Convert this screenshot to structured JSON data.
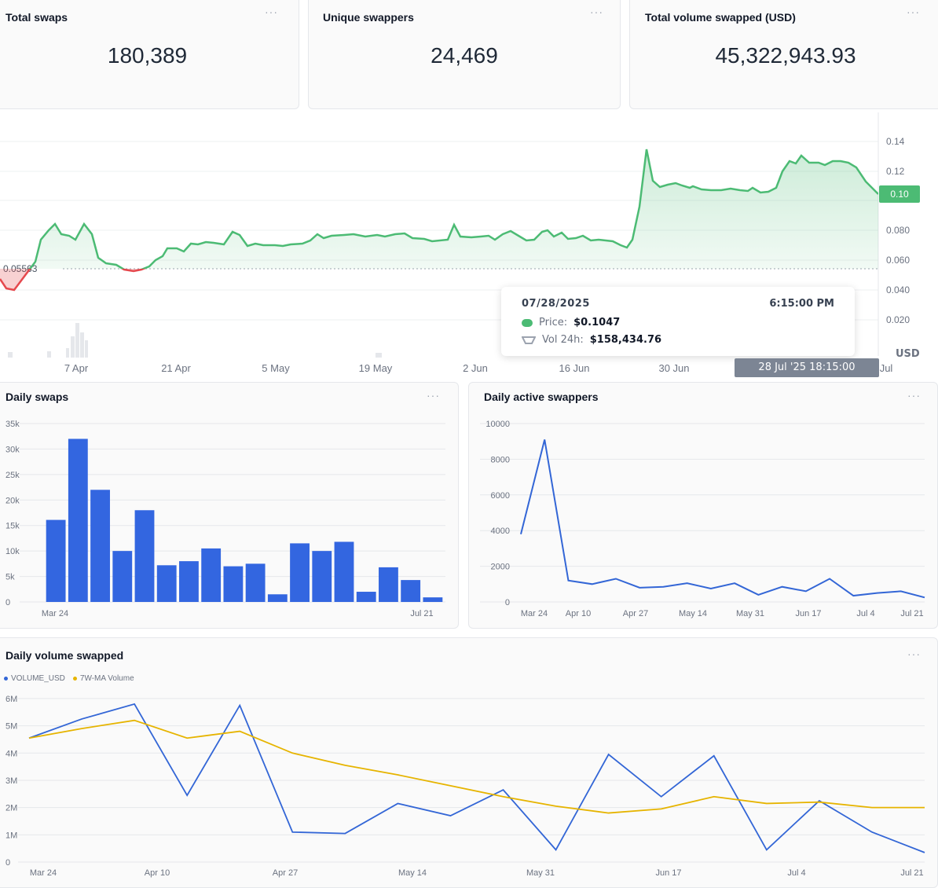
{
  "kpis": [
    {
      "title": "Total swaps",
      "value": "180,389"
    },
    {
      "title": "Unique swappers",
      "value": "24,469"
    },
    {
      "title": "Total volume swapped (USD)",
      "value": "45,322,943.93"
    }
  ],
  "menu_glyph": "···",
  "price_chart": {
    "y_ticks": [
      "0.14",
      "0.12",
      "0.10",
      "0.080",
      "0.060",
      "0.040",
      "0.020"
    ],
    "y_values": [
      0.14,
      0.12,
      0.1,
      0.08,
      0.06,
      0.04,
      0.02
    ],
    "x_ticks": [
      "7 Apr",
      "21 Apr",
      "5 May",
      "19 May",
      "2 Jun",
      "16 Jun",
      "30 Jun",
      "Jul"
    ],
    "base_price": "0.05563",
    "current_price_label": "0.10",
    "currency": "USD",
    "crosshair_time": "28 Jul '25 18:15:00",
    "colors": {
      "up": "#4cbb74",
      "down": "#e5484d"
    },
    "tooltip": {
      "date": "07/28/2025",
      "time": "6:15:00 PM",
      "price_label": "Price:",
      "price_value": "$0.1047",
      "vol_label": "Vol 24h:",
      "vol_value": "$158,434.76"
    }
  },
  "daily_swaps": {
    "title": "Daily swaps",
    "chart_data": {
      "type": "bar",
      "x_labels": [
        "Mar 24",
        "Jul 21"
      ],
      "y_ticks": [
        "35k",
        "30k",
        "25k",
        "20k",
        "15k",
        "10k",
        "5k",
        "0"
      ],
      "values": [
        16100,
        32000,
        22000,
        10000,
        18000,
        7200,
        8000,
        10500,
        7000,
        7500,
        1500,
        11500,
        10000,
        11800,
        2000,
        6800,
        4300,
        900
      ],
      "ylim": [
        0,
        35000
      ],
      "color": "#3366e0"
    }
  },
  "daily_active": {
    "title": "Daily active swappers",
    "chart_data": {
      "type": "line",
      "x_labels": [
        "Mar 24",
        "Apr 10",
        "Apr 27",
        "May 14",
        "May 31",
        "Jun 17",
        "Jul 4",
        "Jul 21"
      ],
      "y_ticks": [
        "10000",
        "8000",
        "6000",
        "4000",
        "2000",
        "0"
      ],
      "values": [
        3800,
        9100,
        1200,
        1000,
        1300,
        800,
        850,
        1050,
        750,
        1050,
        400,
        850,
        600,
        1300,
        350,
        500,
        600,
        250
      ],
      "ylim": [
        0,
        10000
      ],
      "color": "#3366d6"
    }
  },
  "daily_volume": {
    "title": "Daily volume swapped",
    "chart_data": {
      "type": "line",
      "x_labels": [
        "Mar 24",
        "Apr 10",
        "Apr 27",
        "May 14",
        "May 31",
        "Jun 17",
        "Jul 4",
        "Jul 21"
      ],
      "y_ticks": [
        "6M",
        "5M",
        "4M",
        "3M",
        "2M",
        "1M",
        "0"
      ],
      "ylim": [
        0,
        6200000
      ],
      "series": [
        {
          "name": "VOLUME_USD",
          "color": "#3366d6",
          "values": [
            4550000,
            5250000,
            5800000,
            2450000,
            5750000,
            1100000,
            1050000,
            2150000,
            1700000,
            2650000,
            450000,
            3950000,
            2400000,
            3900000,
            450000,
            2250000,
            1100000,
            350000
          ]
        },
        {
          "name": "7W-MA Volume",
          "color": "#e6b400",
          "values": [
            4550000,
            4900000,
            5200000,
            4550000,
            4800000,
            4000000,
            3550000,
            3200000,
            2800000,
            2400000,
            2050000,
            1800000,
            1950000,
            2400000,
            2150000,
            2200000,
            2000000,
            2000000
          ]
        }
      ]
    }
  }
}
